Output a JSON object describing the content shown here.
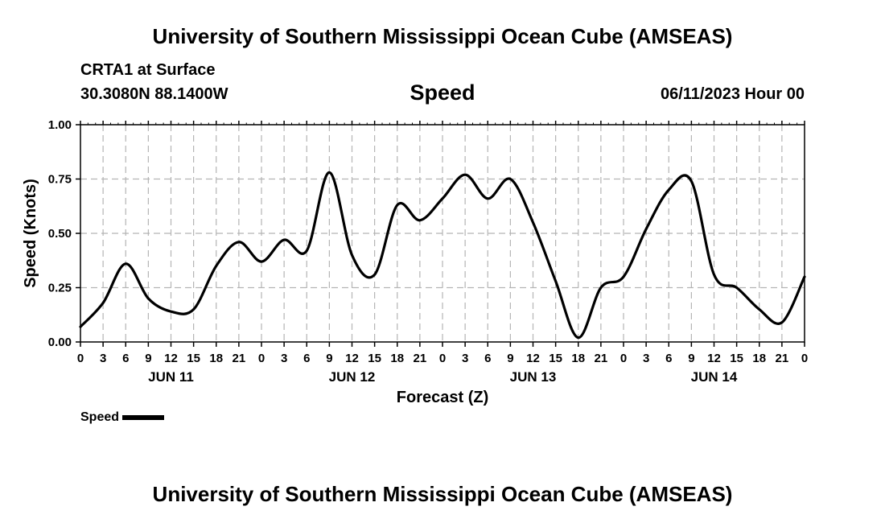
{
  "header": {
    "main_title": "University of Southern Mississippi Ocean Cube (AMSEAS)",
    "station": "CRTA1 at Surface",
    "coords": "30.3080N  88.1400W",
    "chart_title": "Speed",
    "datetime": "06/11/2023 Hour 00"
  },
  "footer": {
    "title": "University of Southern Mississippi Ocean Cube (AMSEAS)"
  },
  "legend": {
    "label": "Speed"
  },
  "colors": {
    "line": "#000000",
    "grid": "#b4b4b4"
  },
  "chart_data": {
    "type": "line",
    "title": "Speed",
    "xlabel": "Forecast (Z)",
    "ylabel": "Speed (Knots)",
    "xlim": [
      0,
      96
    ],
    "ylim": [
      0,
      1
    ],
    "yticks": [
      "0.00",
      "0.25",
      "0.50",
      "0.75",
      "1.00"
    ],
    "xtick_labels": [
      "0",
      "3",
      "6",
      "9",
      "12",
      "15",
      "18",
      "21",
      "0",
      "3",
      "6",
      "9",
      "12",
      "15",
      "18",
      "21",
      "0",
      "3",
      "6",
      "9",
      "12",
      "15",
      "18",
      "21",
      "0",
      "3",
      "6",
      "9",
      "12",
      "15",
      "18",
      "21",
      "0"
    ],
    "day_labels": [
      {
        "label": "JUN 11",
        "hour": 12
      },
      {
        "label": "JUN 12",
        "hour": 36
      },
      {
        "label": "JUN 13",
        "hour": 60
      },
      {
        "label": "JUN 14",
        "hour": 84
      }
    ],
    "grid": true,
    "legend_position": "bottom-left",
    "series": [
      {
        "name": "Speed",
        "x": [
          0,
          3,
          6,
          9,
          12,
          15,
          18,
          21,
          24,
          27,
          30,
          33,
          36,
          39,
          42,
          45,
          48,
          51,
          54,
          57,
          60,
          63,
          66,
          69,
          72,
          75,
          78,
          81,
          84,
          87,
          90,
          93,
          96
        ],
        "values": [
          0.07,
          0.18,
          0.36,
          0.2,
          0.14,
          0.15,
          0.35,
          0.46,
          0.37,
          0.47,
          0.42,
          0.78,
          0.4,
          0.31,
          0.63,
          0.56,
          0.66,
          0.77,
          0.66,
          0.75,
          0.55,
          0.28,
          0.02,
          0.25,
          0.3,
          0.52,
          0.7,
          0.74,
          0.31,
          0.25,
          0.15,
          0.09,
          0.3
        ]
      }
    ]
  }
}
